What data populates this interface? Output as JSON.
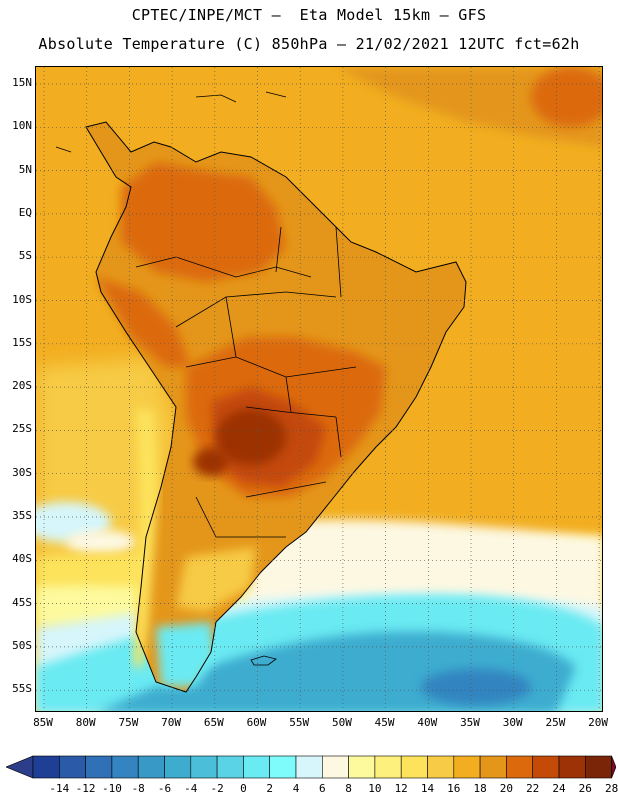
{
  "title": {
    "line1": "CPTEC/INPE/MCT —  Eta Model 15km — GFS",
    "line2": "Absolute Temperature (C) 850hPa — 21/02/2021 12UTC fct=62h"
  },
  "map": {
    "lat_labels": [
      "15N",
      "10N",
      "5N",
      "EQ",
      "5S",
      "10S",
      "15S",
      "20S",
      "25S",
      "30S",
      "35S",
      "40S",
      "45S",
      "50S",
      "55S"
    ],
    "lon_labels": [
      "85W",
      "80W",
      "75W",
      "70W",
      "65W",
      "60W",
      "55W",
      "50W",
      "45W",
      "40W",
      "35W",
      "30W",
      "25W",
      "20W"
    ],
    "ocean_color": "#f2ae20",
    "land_base_color": "#e4961a"
  },
  "colorbar": {
    "labels": [
      "-14",
      "-12",
      "-10",
      "-8",
      "-6",
      "-4",
      "-2",
      "0",
      "2",
      "4",
      "6",
      "8",
      "10",
      "12",
      "14",
      "16",
      "18",
      "20",
      "22",
      "24",
      "26",
      "28"
    ],
    "colors": [
      "#1f3f96",
      "#2a5aa8",
      "#2f70b6",
      "#3384c0",
      "#3898c6",
      "#3eaccf",
      "#4bbfd9",
      "#5bd3e6",
      "#6aeaf2",
      "#7efcfc",
      "#d6f6fb",
      "#fdf8e2",
      "#fdfa9e",
      "#fef07c",
      "#fde35c",
      "#f7cb45",
      "#f2ae20",
      "#e4961a",
      "#dc6a0c",
      "#c44a08",
      "#9c3206",
      "#7a2508"
    ],
    "under_color": "#2c3d8a",
    "over_color": "#7a0a2a"
  }
}
